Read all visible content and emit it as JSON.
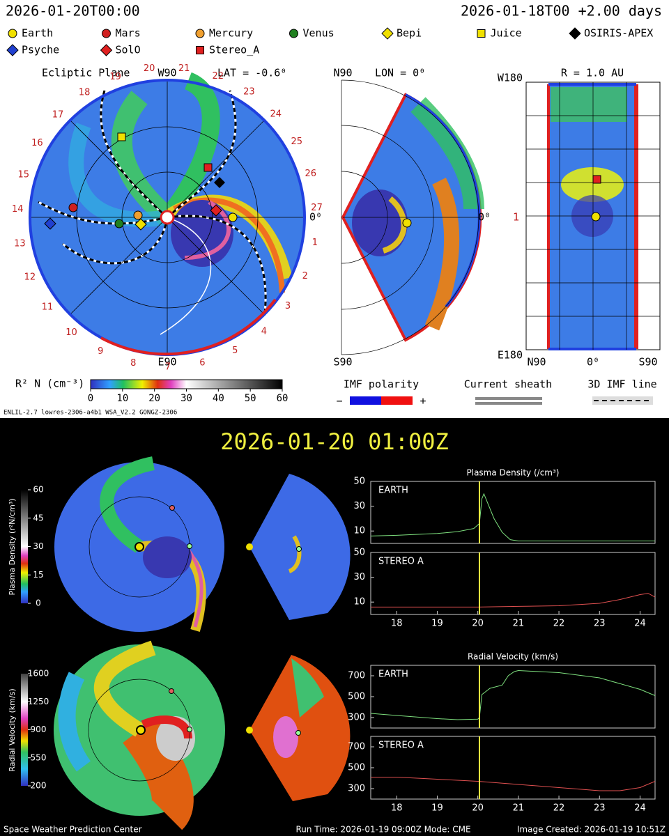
{
  "header": {
    "time": "2026-01-20T00:00",
    "run": "2026-01-18T00 +2.00 days"
  },
  "legend": [
    {
      "name": "Earth",
      "color": "#f0e000",
      "shape": "circle"
    },
    {
      "name": "Mars",
      "color": "#d02020",
      "shape": "circle"
    },
    {
      "name": "Mercury",
      "color": "#f0a030",
      "shape": "circle"
    },
    {
      "name": "Venus",
      "color": "#208020",
      "shape": "circle"
    },
    {
      "name": "Bepi",
      "color": "#f0e000",
      "shape": "diamond"
    },
    {
      "name": "Juice",
      "color": "#f0e000",
      "shape": "square"
    },
    {
      "name": "OSIRIS-APEX",
      "color": "#000000",
      "shape": "diamond"
    },
    {
      "name": "Psyche",
      "color": "#2040d0",
      "shape": "diamond"
    },
    {
      "name": "SolO",
      "color": "#e02020",
      "shape": "diamond"
    },
    {
      "name": "Stereo_A",
      "color": "#e02020",
      "shape": "square"
    }
  ],
  "ecliptic": {
    "title": "Ecliptic Plane",
    "top": "W90",
    "lat": "LAT = -0.6⁰",
    "bottom": "E90",
    "right": "0⁰",
    "carrington": [
      "1",
      "2",
      "3",
      "4",
      "5",
      "6",
      "7",
      "8",
      "9",
      "10",
      "11",
      "12",
      "13",
      "14",
      "15",
      "16",
      "17",
      "18",
      "19",
      "20",
      "21",
      "22",
      "23",
      "24",
      "25",
      "26",
      "27"
    ]
  },
  "meridional": {
    "top": "N90",
    "lon": "LON = 0⁰",
    "bottom": "S90",
    "right": "0⁰"
  },
  "rsphere": {
    "top": "W180",
    "title": "R = 1.0 AU",
    "bottom": "E180",
    "left": "1",
    "xlabels": [
      "N90",
      "0⁰",
      "S90"
    ]
  },
  "colorbar": {
    "label": "R² N (cm⁻³)",
    "xlim": [
      0,
      60
    ],
    "xticks": [
      0,
      10,
      20,
      30,
      40,
      50,
      60
    ]
  },
  "imf": {
    "title": "IMF polarity",
    "minus": "−",
    "plus": "+",
    "sheath": "Current sheath",
    "line": "3D IMF line"
  },
  "model": "ENLIL-2.7 lowres-2306-a4b1 WSA_V2.2 GONGZ-2306",
  "bottom": {
    "title": "2026-01-20 01:00Z",
    "density_bar": {
      "label": "Plasma Density (r²N/cm³)",
      "ylim": [
        0,
        60
      ],
      "yticks": [
        0,
        15,
        30,
        45,
        60
      ]
    },
    "velocity_bar": {
      "label": "Radial Velocity (km/s)",
      "ylim": [
        200,
        1600
      ],
      "yticks": [
        200,
        550,
        900,
        1250,
        1600
      ]
    }
  },
  "chart_data": [
    {
      "type": "line",
      "title": "Plasma Density (/cm³)",
      "x": [
        17.36,
        18,
        19,
        19.5,
        19.9,
        20.04,
        20.1,
        20.15,
        20.25,
        20.4,
        20.6,
        20.8,
        21,
        22,
        23,
        24,
        24.37
      ],
      "series": [
        {
          "name": "EARTH",
          "color": "#7ee07e",
          "values": [
            6,
            6.5,
            8,
            9.5,
            12,
            16,
            36,
            40,
            32,
            20,
            9,
            3,
            2,
            2,
            2,
            2,
            2
          ]
        }
      ],
      "xlim": [
        17.36,
        24.37
      ],
      "ylim": [
        0,
        50
      ],
      "yticks": [
        10,
        30,
        50
      ],
      "marker_x": 20.04
    },
    {
      "type": "line",
      "x": [
        17.36,
        18,
        19,
        20,
        21,
        22,
        23,
        23.5,
        24,
        24.2,
        24.37
      ],
      "series": [
        {
          "name": "STEREO A",
          "color": "#e05050",
          "values": [
            6,
            6,
            6,
            6,
            6.5,
            7,
            9,
            12,
            16,
            17,
            14
          ]
        }
      ],
      "xlim": [
        17.36,
        24.37
      ],
      "xticks": [
        18,
        19,
        20,
        21,
        22,
        23,
        24
      ],
      "ylim": [
        0,
        50
      ],
      "yticks": [
        10,
        30,
        50
      ],
      "marker_x": 20.04
    },
    {
      "type": "line",
      "title": "Radial Velocity (km/s)",
      "x": [
        17.36,
        18,
        19,
        19.5,
        20,
        20.04,
        20.1,
        20.3,
        20.6,
        20.75,
        20.9,
        21,
        22,
        23,
        24,
        24.37
      ],
      "series": [
        {
          "name": "EARTH",
          "color": "#7ee07e",
          "values": [
            340,
            320,
            290,
            280,
            285,
            300,
            520,
            580,
            610,
            700,
            740,
            750,
            730,
            680,
            570,
            510
          ]
        }
      ],
      "xlim": [
        17.36,
        24.37
      ],
      "ylim": [
        200,
        800
      ],
      "yticks": [
        300,
        500,
        700
      ],
      "marker_x": 20.04
    },
    {
      "type": "line",
      "x": [
        17.36,
        18,
        19,
        20,
        21,
        22,
        23,
        23.5,
        24,
        24.37
      ],
      "series": [
        {
          "name": "STEREO A",
          "color": "#e05050",
          "values": [
            410,
            410,
            390,
            370,
            340,
            310,
            280,
            280,
            310,
            370
          ]
        }
      ],
      "xlim": [
        17.36,
        24.37
      ],
      "xticks": [
        18,
        19,
        20,
        21,
        22,
        23,
        24
      ],
      "ylim": [
        200,
        800
      ],
      "yticks": [
        300,
        500,
        700
      ],
      "marker_x": 20.04
    }
  ],
  "footer": {
    "left": "Space Weather Prediction Center",
    "center": "Run Time: 2026-01-19 09:00Z  Mode: CME",
    "right": "Image Created: 2026-01-19 10:51Z"
  }
}
